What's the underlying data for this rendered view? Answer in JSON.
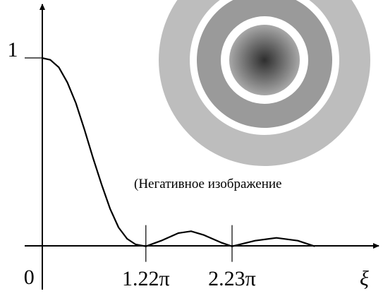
{
  "chart_data": {
    "type": "line",
    "x": [
      0,
      0.1,
      0.2,
      0.3,
      0.4,
      0.5,
      0.6,
      0.7,
      0.8,
      0.9,
      1.0,
      1.1,
      1.22,
      1.4,
      1.6,
      1.75,
      1.9,
      2.1,
      2.23,
      2.5,
      2.75,
      3.0,
      3.2
    ],
    "series": [
      {
        "color": "#000000",
        "values": [
          1,
          0.99,
          0.95,
          0.87,
          0.76,
          0.62,
          0.47,
          0.33,
          0.2,
          0.1,
          0.04,
          0.01,
          0,
          0.03,
          0.07,
          0.08,
          0.06,
          0.02,
          0,
          0.03,
          0.045,
          0.03,
          0
        ]
      }
    ],
    "xlim": [
      -0.2,
      3.85
    ],
    "ylim": [
      -0.23,
      1.27
    ],
    "xticks": [
      0,
      {
        "value": 1.22,
        "label": "1.22π"
      },
      {
        "value": 2.23,
        "label": "2.23π"
      }
    ],
    "yticks": [
      1
    ],
    "x_label": "ξ",
    "annotation": "(Негативное изображение"
  }
}
